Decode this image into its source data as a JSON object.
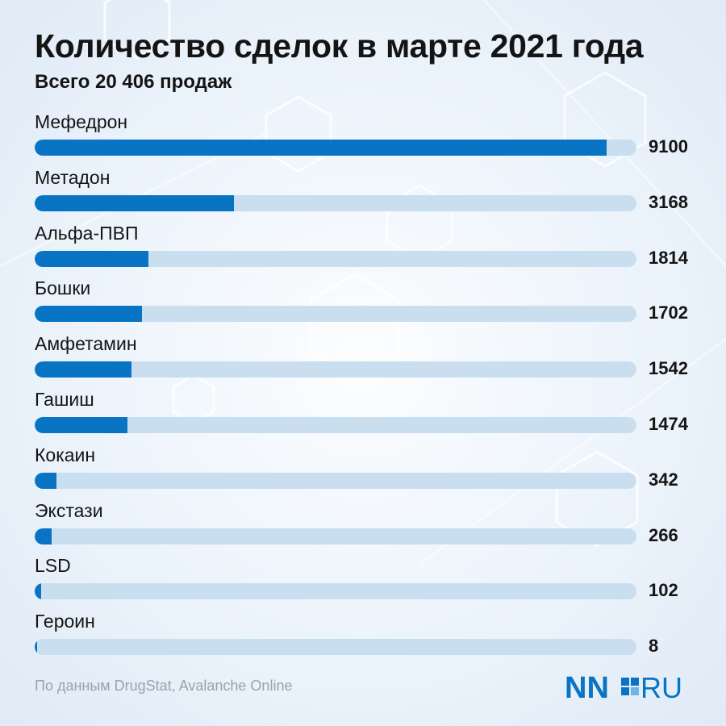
{
  "header": {
    "title": "Количество сделок в марте 2021 года",
    "subtitle": "Всего 20 406 продаж"
  },
  "footer": {
    "source": "По данным DrugStat, Avalanche Online",
    "logo": "NN.RU"
  },
  "colors": {
    "bar_fill": "#0a74c4",
    "bar_track": "#c9dff0",
    "logo_blue": "#0a74c4"
  },
  "chart_data": {
    "type": "bar",
    "orientation": "horizontal",
    "title": "Количество сделок в марте 2021 года",
    "subtitle": "Всего 20 406 продаж",
    "categories": [
      "Мефедрон",
      "Метадон",
      "Альфа-ПВП",
      "Бошки",
      "Амфетамин",
      "Гашиш",
      "Кокаин",
      "Экстази",
      "LSD",
      "Героин"
    ],
    "values": [
      9100,
      3168,
      1814,
      1702,
      1542,
      1474,
      342,
      266,
      102,
      8
    ],
    "value_labels": [
      "9100",
      "3168",
      "1814",
      "1702",
      "1542",
      "1474",
      "342",
      "266",
      "102",
      "8"
    ],
    "xlim": [
      0,
      9580
    ],
    "grid": false,
    "legend": "none"
  }
}
